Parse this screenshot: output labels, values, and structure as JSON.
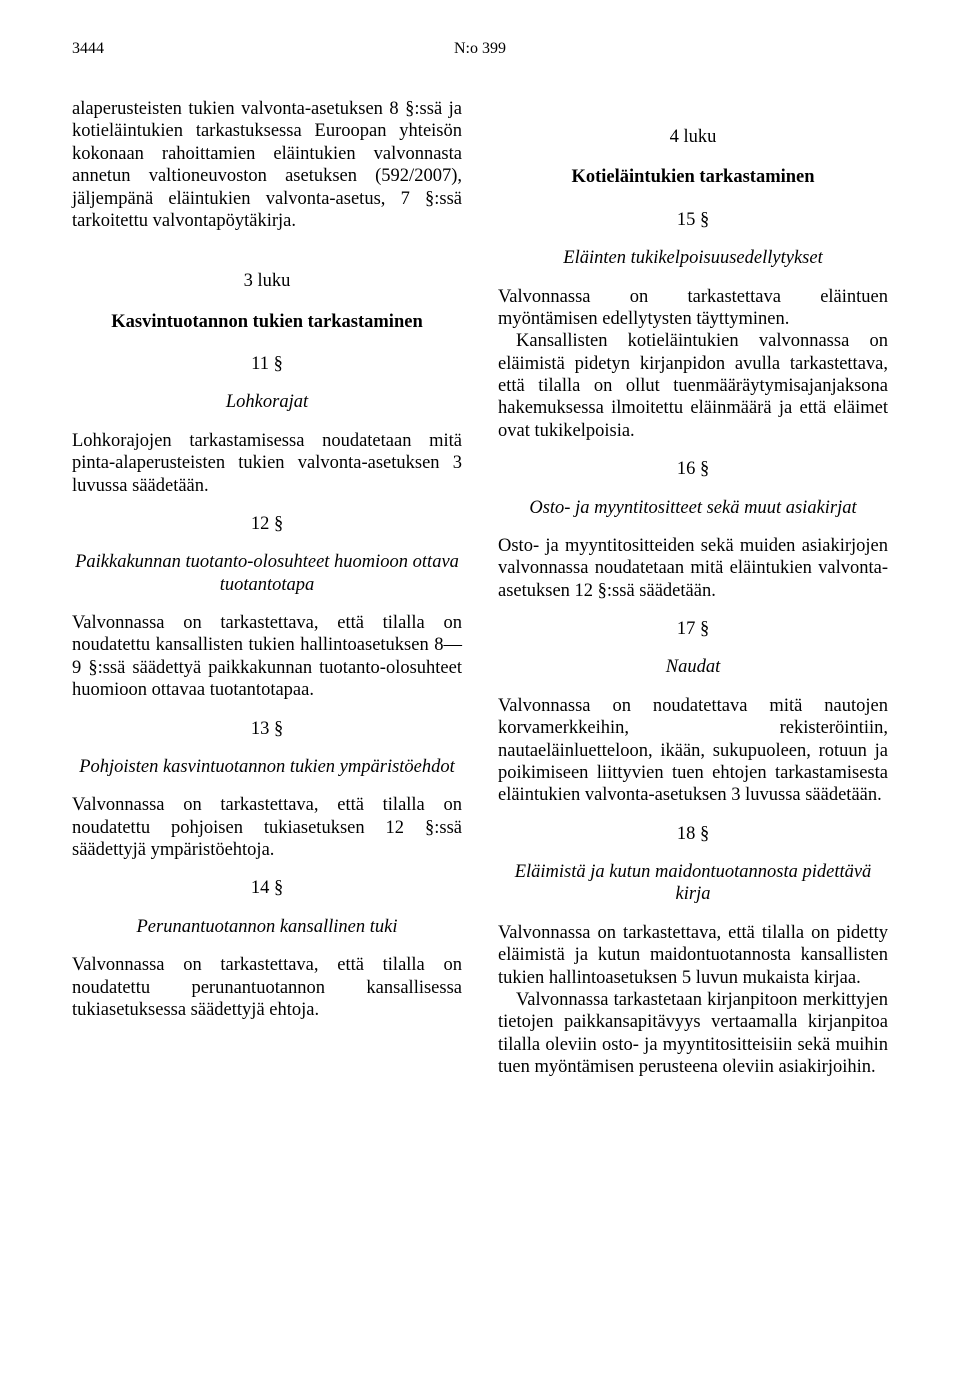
{
  "header": {
    "page_number": "3444",
    "document_number": "N:o 399"
  },
  "left": {
    "intro": "alaperusteisten tukien valvonta-asetuksen 8 §:ssä ja kotieläintukien tarkastuksessa Euroopan yhteisön kokonaan rahoittamien eläintukien valvonnasta annetun valtioneuvoston asetuksen (592/2007), jäljempänä eläintukien valvonta-asetus, 7 §:ssä tarkoitettu valvontapöytäkirja.",
    "chapter3_label": "3 luku",
    "chapter3_title": "Kasvintuotannon tukien tarkastaminen",
    "s11_num": "11 §",
    "s11_title": "Lohkorajat",
    "s11_body": "Lohkorajojen tarkastamisessa noudatetaan mitä pinta-alaperusteisten tukien valvonta-asetuksen 3 luvussa säädetään.",
    "s12_num": "12 §",
    "s12_title": "Paikkakunnan tuotanto-olosuhteet huomioon ottava tuotantotapa",
    "s12_body": "Valvonnassa on tarkastettava, että tilalla on noudatettu kansallisten tukien hallintoasetuksen 8—9 §:ssä säädettyä paikkakunnan tuotanto-olosuhteet huomioon ottavaa tuotantotapaa.",
    "s13_num": "13 §",
    "s13_title": "Pohjoisten kasvintuotannon tukien ympäristöehdot",
    "s13_body": "Valvonnassa on tarkastettava, että tilalla on noudatettu pohjoisen tukiasetuksen 12 §:ssä säädettyjä ympäristöehtoja.",
    "s14_num": "14 §",
    "s14_title": "Perunantuotannon kansallinen tuki",
    "s14_body": "Valvonnassa on tarkastettava, että tilalla on noudatettu perunantuotannon kansallisessa tukiasetuksessa säädettyjä ehtoja."
  },
  "right": {
    "chapter4_label": "4 luku",
    "chapter4_title": "Kotieläintukien tarkastaminen",
    "s15_num": "15 §",
    "s15_title": "Eläinten tukikelpoisuusedellytykset",
    "s15_body1": "Valvonnassa on tarkastettava eläintuen myöntämisen edellytysten täyttyminen.",
    "s15_body2": "Kansallisten kotieläintukien valvonnassa on eläimistä pidetyn kirjanpidon avulla tarkastettava, että tilalla on ollut tuenmääräytymisajanjaksona hakemuksessa ilmoitettu eläinmäärä ja että eläimet ovat tukikelpoisia.",
    "s16_num": "16 §",
    "s16_title": "Osto- ja myyntitositteet sekä muut asiakirjat",
    "s16_body": "Osto- ja myyntitositteiden sekä muiden asiakirjojen valvonnassa noudatetaan mitä eläintukien valvonta-asetuksen 12 §:ssä säädetään.",
    "s17_num": "17 §",
    "s17_title": "Naudat",
    "s17_body": "Valvonnassa on noudatettava mitä nautojen korvamerkkeihin, rekisteröintiin, nautaeläinluetteloon, ikään, sukupuoleen, rotuun ja poikimiseen liittyvien tuen ehtojen tarkastamisesta eläintukien valvonta-asetuksen 3 luvussa säädetään.",
    "s18_num": "18 §",
    "s18_title": "Eläimistä ja kutun maidontuotannosta pidettävä kirja",
    "s18_body1": "Valvonnassa on tarkastettava, että tilalla on pidetty eläimistä ja kutun maidontuotannosta kansallisten tukien hallintoasetuksen 5 luvun mukaista kirjaa.",
    "s18_body2": "Valvonnassa tarkastetaan kirjanpitoon merkittyjen tietojen paikkansapitävyys vertaamalla kirjanpitoa tilalla oleviin osto- ja myyntitositteisiin sekä muihin tuen myöntämisen perusteena oleviin asiakirjoihin."
  }
}
